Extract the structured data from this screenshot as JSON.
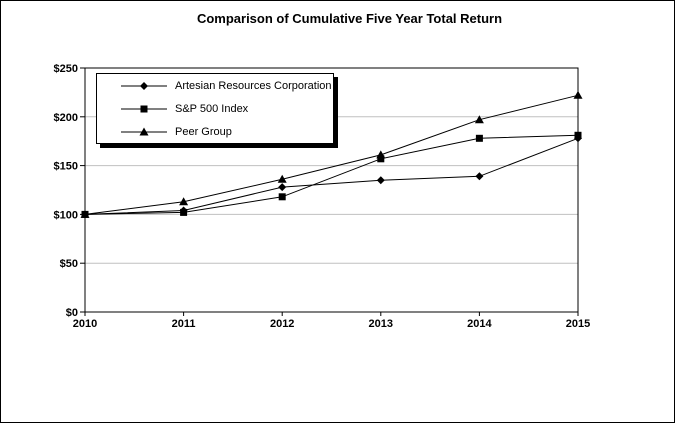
{
  "chart_data": {
    "type": "line",
    "title": "Comparison of Cumulative Five Year Total Return",
    "categories": [
      "2010",
      "2011",
      "2012",
      "2013",
      "2014",
      "2015"
    ],
    "series": [
      {
        "name": "Artesian Resources Corporation",
        "marker": "diamond",
        "color": "#000000",
        "values": [
          100,
          104,
          128,
          135,
          139,
          178
        ]
      },
      {
        "name": "S&P 500 Index",
        "marker": "square",
        "color": "#000000",
        "values": [
          100,
          102,
          118,
          157,
          178,
          181
        ]
      },
      {
        "name": "Peer Group",
        "marker": "triangle",
        "color": "#000000",
        "values": [
          100,
          113,
          136,
          161,
          197,
          222
        ]
      }
    ],
    "ylim": [
      0,
      250
    ],
    "ytick_step": 50,
    "ytick_labels": [
      "$0",
      "$50",
      "$100",
      "$150",
      "$200",
      "$250"
    ],
    "xtick_labels": [
      "2010",
      "2011",
      "2012",
      "2013",
      "2014",
      "2015"
    ],
    "grid": true,
    "gridline_color": "#c0c0c0",
    "axis_color": "#000000",
    "plot_border": true,
    "legend_position": "top-left-inside"
  }
}
